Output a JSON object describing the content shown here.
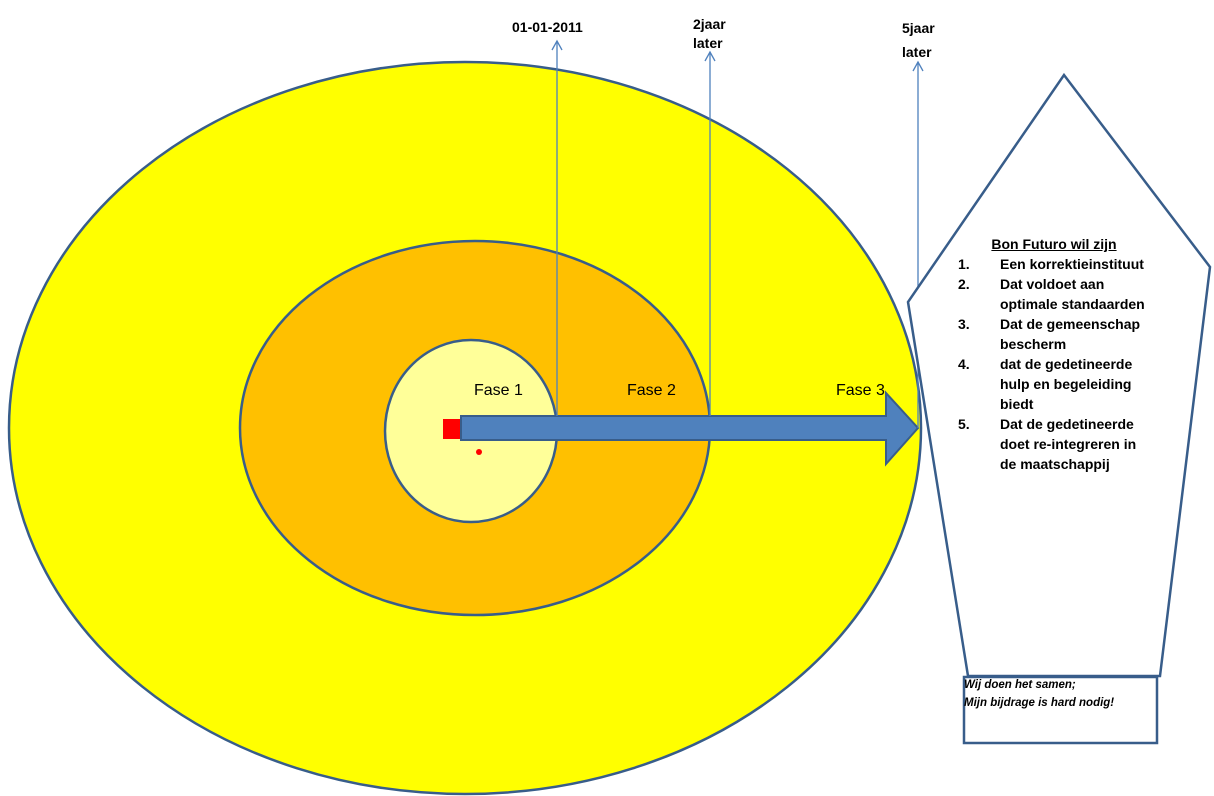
{
  "timeline": {
    "start_label": "01-01-2011",
    "two_year_line1": "2jaar",
    "two_year_line2": "later",
    "five_year_line1": "5jaar",
    "five_year_line2": "later"
  },
  "phases": {
    "fase1": "Fase 1",
    "fase2": "Fase 2",
    "fase3": "Fase 3"
  },
  "goal_panel": {
    "title": "Bon Futuro wil zijn",
    "items": [
      {
        "number": "1.",
        "text": "Een korrektieinstituut"
      },
      {
        "number": "2.",
        "text": "Dat voldoet aan optimale standaarden"
      },
      {
        "number": "3.",
        "text": "Dat de gemeenschap bescherm"
      },
      {
        "number": "4.",
        "text": " dat de gedetineerde hulp en begeleiding biedt"
      },
      {
        "number": "5.",
        "text": "Dat de gedetineerde doet re-integreren in de maatschappij"
      }
    ]
  },
  "slogan": {
    "line1": "Wij doen het samen;",
    "line2": "Mijn bijdrage is hard nodig!"
  },
  "colors": {
    "outer_ellipse": "#FFFF00",
    "middle_ellipse": "#FFC000",
    "inner_circle": "#FFFF99",
    "outline": "#385D8A",
    "arrow": "#4F81BD",
    "marker": "#FF0000",
    "timeline_line": "#4F81BD"
  }
}
